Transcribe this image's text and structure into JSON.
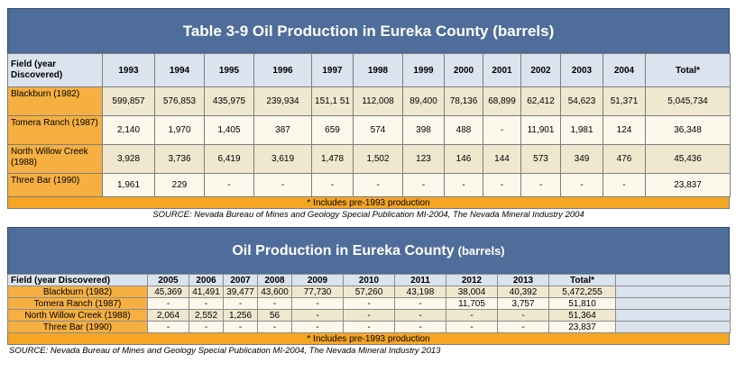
{
  "table1": {
    "title": "Table 3-9 Oil Production in Eureka County (barrels)",
    "field_header": "Field (year Discovered)",
    "years": [
      "1993",
      "1994",
      "1995",
      "1996",
      "1997",
      "1998",
      "1999",
      "2000",
      "2001",
      "2002",
      "2003",
      "2004"
    ],
    "total_header": "Total*",
    "rows": [
      {
        "field": "Blackburn (1982)",
        "values": [
          "599,857",
          "576,853",
          "435,975",
          "239,934",
          "151,1 51",
          "112,008",
          "89,400",
          "78,136",
          "68,899",
          "62,412",
          "54,623",
          "51,371"
        ],
        "total": "5,045,734"
      },
      {
        "field": "Tomera Ranch (1987)",
        "values": [
          "2,140",
          "1,970",
          "1,405",
          "387",
          "659",
          "574",
          "398",
          "488",
          "-",
          "11,901",
          "1,981",
          "124"
        ],
        "total": "36,348"
      },
      {
        "field": "North Willow Creek (1988)",
        "values": [
          "3,928",
          "3,736",
          "6,419",
          "3,619",
          "1,478",
          "1,502",
          "123",
          "146",
          "144",
          "573",
          "349",
          "476"
        ],
        "total": "45,436"
      },
      {
        "field": "Three Bar (1990)",
        "values": [
          "1,961",
          "229",
          "-",
          "-",
          "-",
          "-",
          "-",
          "-",
          "-",
          "-",
          "-",
          "-"
        ],
        "total": "23,837"
      }
    ],
    "footnote": "* Includes pre-1993 production",
    "source": "SOURCE: Nevada Bureau of Mines and Geology Special Publication MI-2004, The Nevada Mineral Industry 2004"
  },
  "table2": {
    "title": "Oil Production in Eureka County",
    "title_suffix": "(barrels)",
    "field_header": "Field (year Discovered)",
    "years": [
      "2005",
      "2006",
      "2007",
      "2008",
      "2009",
      "2010",
      "2011",
      "2012",
      "2013"
    ],
    "total_header": "Total*",
    "rows": [
      {
        "field": "Blackburn (1982)",
        "values": [
          "45,369",
          "41,491",
          "39,477",
          "43,600",
          "77,730",
          "57,260",
          "43,198",
          "38,004",
          "40,392"
        ],
        "total": "5,472,255"
      },
      {
        "field": "Tomera Ranch (1987)",
        "values": [
          "-",
          "-",
          "-",
          "-",
          "-",
          "-",
          "-",
          "11,705",
          "3,757"
        ],
        "total": "51,810"
      },
      {
        "field": "North Willow Creek (1988)",
        "values": [
          "2,064",
          "2,552",
          "1,256",
          "56",
          "-",
          "-",
          "-",
          "-",
          "-"
        ],
        "total": "51,364"
      },
      {
        "field": "Three Bar (1990)",
        "values": [
          "-",
          "-",
          "-",
          "-",
          "-",
          "-",
          "-",
          "-",
          "-"
        ],
        "total": "23,837"
      }
    ],
    "footnote": "* Includes pre-1993 production",
    "source": "SOURCE: Nevada Bureau of Mines and Geology Special Publication MI-2004, The Nevada Mineral Industry 2013"
  }
}
